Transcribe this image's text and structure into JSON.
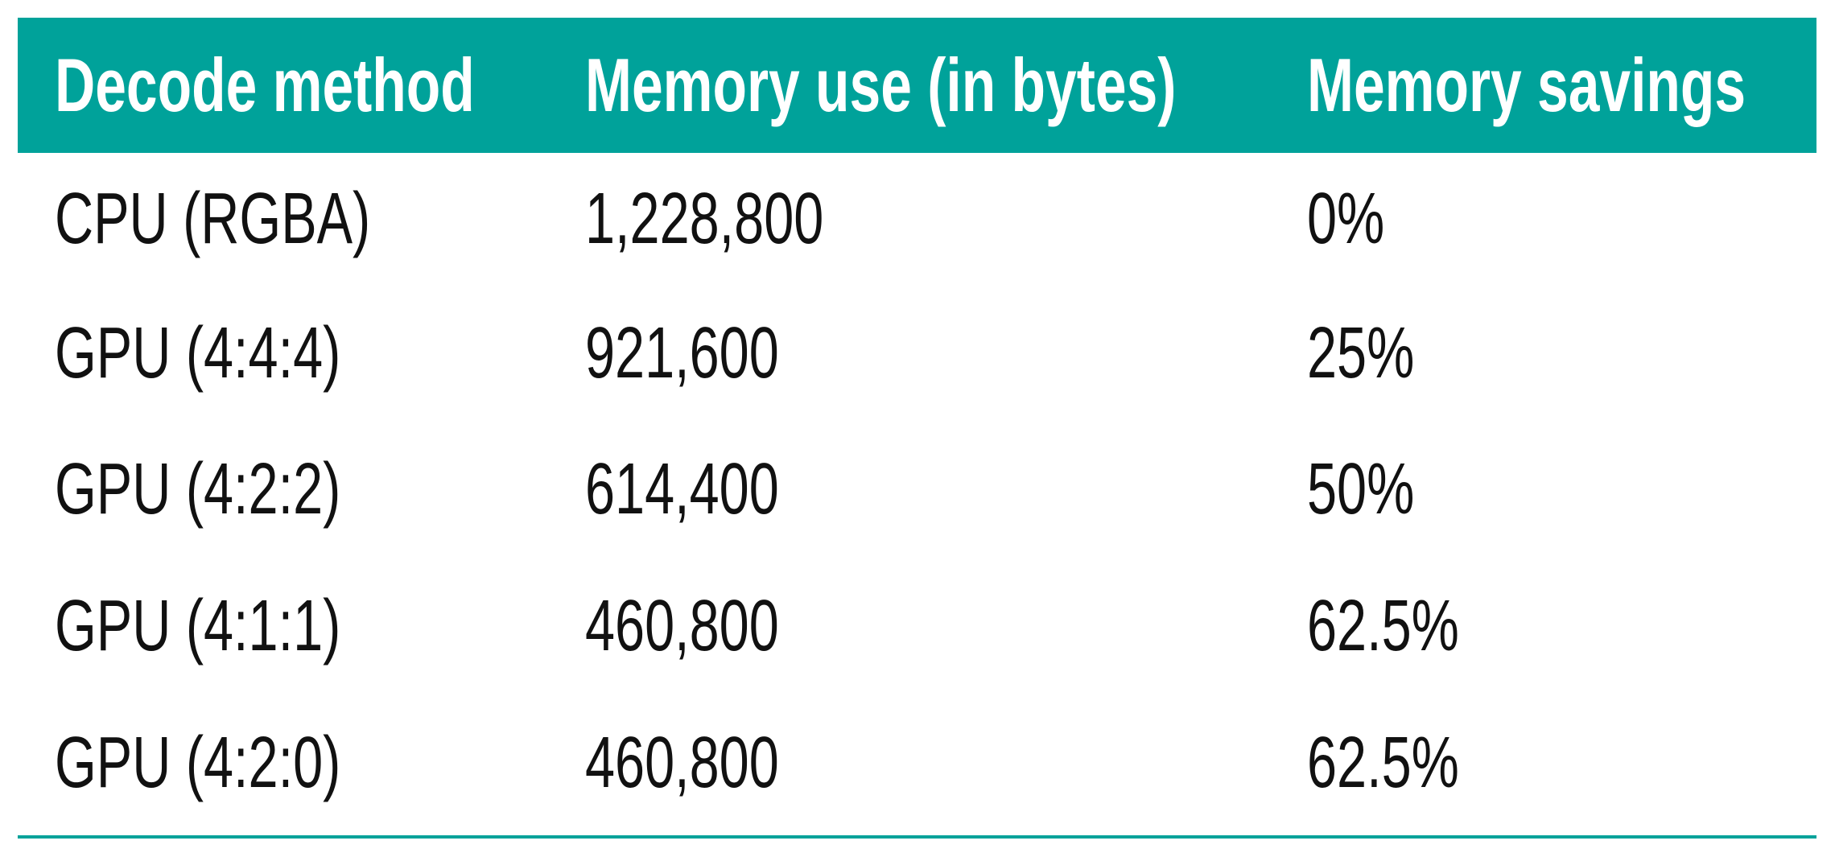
{
  "table": {
    "header": [
      "Decode method",
      "Memory use (in bytes)",
      "Memory savings"
    ],
    "rows": [
      [
        "CPU (RGBA)",
        "1,228,800",
        "0%"
      ],
      [
        "GPU (4:4:4)",
        "921,600",
        "25%"
      ],
      [
        "GPU (4:2:2)",
        "614,400",
        "50%"
      ],
      [
        "GPU (4:1:1)",
        "460,800",
        "62.5%"
      ],
      [
        "GPU (4:2:0)",
        "460,800",
        "62.5%"
      ]
    ]
  }
}
